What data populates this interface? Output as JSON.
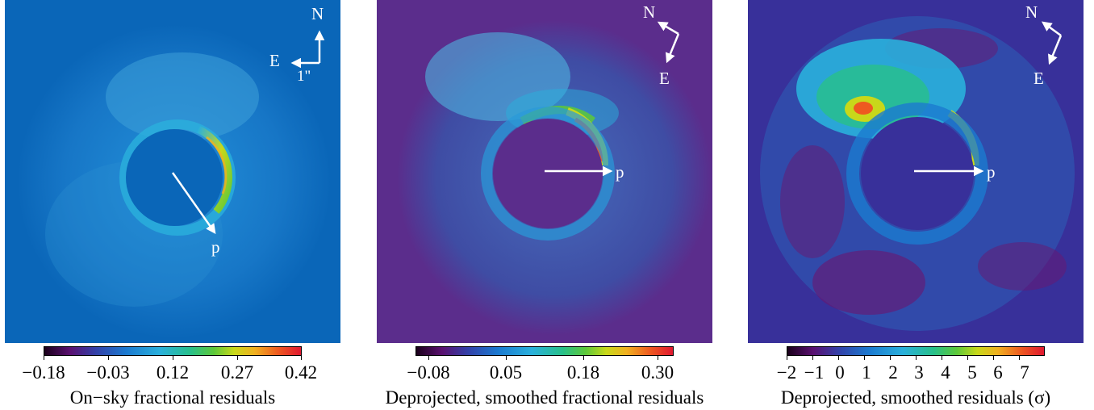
{
  "colors": {
    "bg1": "#0a66b8",
    "bg2": "#5b2d8c",
    "bg3": "#38309a",
    "cmap": [
      "#1a001a",
      "#5a1070",
      "#3340a8",
      "#1b7ad0",
      "#2ab0dc",
      "#28c08a",
      "#5cc83a",
      "#c8d81a",
      "#f0b020",
      "#ee5a20",
      "#e01830"
    ]
  },
  "panels": [
    {
      "compass_n": "N",
      "compass_e": "E",
      "scale_label": "1\"",
      "arrow_label": "p",
      "ticks": [
        "−0.18",
        "−0.03",
        "0.12",
        "0.27",
        "0.42"
      ],
      "colorbar_title": "On−sky fractional residuals"
    },
    {
      "compass_n": "N",
      "compass_e": "E",
      "arrow_label": "p",
      "ticks": [
        "−0.08",
        "0.05",
        "0.18",
        "0.30"
      ],
      "colorbar_title": "Deprojected, smoothed fractional residuals"
    },
    {
      "compass_n": "N",
      "compass_e": "E",
      "arrow_label": "p",
      "ticks": [
        "−2",
        "−1",
        "0",
        "1",
        "2",
        "3",
        "4",
        "5",
        "6",
        "7"
      ],
      "colorbar_title": "Deprojected, smoothed residuals (σ)"
    }
  ]
}
